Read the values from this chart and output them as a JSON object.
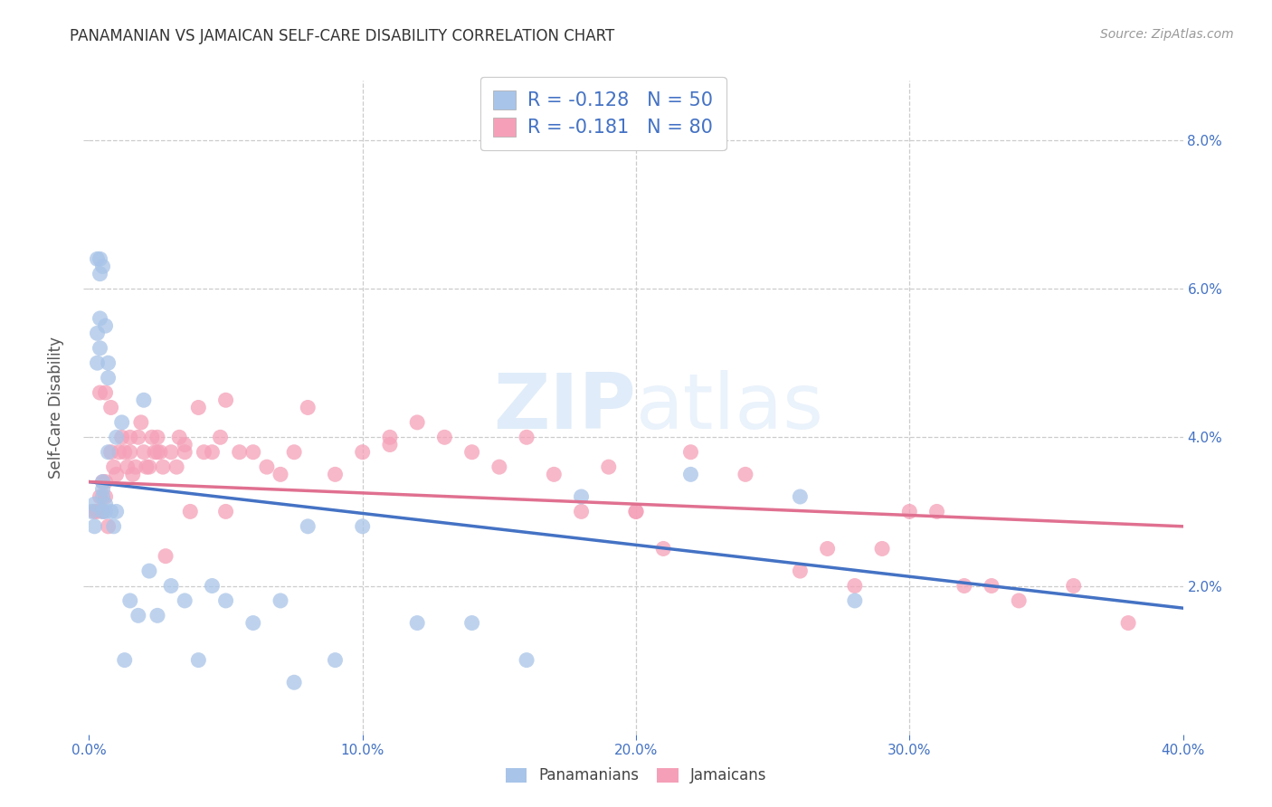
{
  "title": "PANAMANIAN VS JAMAICAN SELF-CARE DISABILITY CORRELATION CHART",
  "source": "Source: ZipAtlas.com",
  "ylabel": "Self-Care Disability",
  "xlim": [
    0.0,
    0.4
  ],
  "ylim": [
    0.0,
    0.088
  ],
  "xticks": [
    0.0,
    0.1,
    0.2,
    0.3,
    0.4
  ],
  "xtick_labels": [
    "0.0%",
    "10.0%",
    "20.0%",
    "30.0%",
    "40.0%"
  ],
  "yticks": [
    0.02,
    0.04,
    0.06,
    0.08
  ],
  "ytick_labels": [
    "2.0%",
    "4.0%",
    "6.0%",
    "8.0%"
  ],
  "panamanian_color": "#a8c4e8",
  "jamaican_color": "#f5a0b8",
  "panamanian_line_color": "#4472c4",
  "jamaican_line_color": "#e07090",
  "tick_color": "#4472c4",
  "legend_color": "#4472c4",
  "watermark_color": "#c8ddf5",
  "pan_line_x": [
    0.0,
    0.4
  ],
  "pan_line_y": [
    0.034,
    0.017
  ],
  "jam_line_x": [
    0.0,
    0.4
  ],
  "jam_line_y": [
    0.034,
    0.028
  ],
  "pan_x": [
    0.001,
    0.002,
    0.002,
    0.003,
    0.003,
    0.003,
    0.004,
    0.004,
    0.004,
    0.004,
    0.005,
    0.005,
    0.005,
    0.005,
    0.005,
    0.006,
    0.006,
    0.006,
    0.007,
    0.007,
    0.007,
    0.008,
    0.009,
    0.01,
    0.01,
    0.012,
    0.013,
    0.015,
    0.018,
    0.02,
    0.022,
    0.025,
    0.03,
    0.035,
    0.04,
    0.045,
    0.05,
    0.06,
    0.07,
    0.075,
    0.08,
    0.09,
    0.1,
    0.12,
    0.14,
    0.16,
    0.18,
    0.22,
    0.26,
    0.28
  ],
  "pan_y": [
    0.03,
    0.028,
    0.031,
    0.05,
    0.054,
    0.064,
    0.052,
    0.056,
    0.062,
    0.064,
    0.03,
    0.032,
    0.033,
    0.034,
    0.063,
    0.03,
    0.031,
    0.055,
    0.048,
    0.038,
    0.05,
    0.03,
    0.028,
    0.03,
    0.04,
    0.042,
    0.01,
    0.018,
    0.016,
    0.045,
    0.022,
    0.016,
    0.02,
    0.018,
    0.01,
    0.02,
    0.018,
    0.015,
    0.018,
    0.007,
    0.028,
    0.01,
    0.028,
    0.015,
    0.015,
    0.01,
    0.032,
    0.035,
    0.032,
    0.018
  ],
  "jam_x": [
    0.002,
    0.003,
    0.004,
    0.005,
    0.005,
    0.006,
    0.006,
    0.007,
    0.008,
    0.009,
    0.01,
    0.011,
    0.012,
    0.013,
    0.014,
    0.015,
    0.016,
    0.017,
    0.018,
    0.019,
    0.02,
    0.021,
    0.022,
    0.023,
    0.024,
    0.025,
    0.026,
    0.027,
    0.028,
    0.03,
    0.032,
    0.033,
    0.035,
    0.037,
    0.04,
    0.042,
    0.045,
    0.048,
    0.05,
    0.055,
    0.06,
    0.065,
    0.07,
    0.08,
    0.09,
    0.1,
    0.11,
    0.12,
    0.13,
    0.14,
    0.15,
    0.16,
    0.17,
    0.18,
    0.19,
    0.2,
    0.21,
    0.22,
    0.24,
    0.26,
    0.27,
    0.28,
    0.29,
    0.3,
    0.31,
    0.32,
    0.33,
    0.34,
    0.36,
    0.38,
    0.004,
    0.006,
    0.008,
    0.015,
    0.025,
    0.035,
    0.05,
    0.075,
    0.11,
    0.2
  ],
  "jam_y": [
    0.03,
    0.03,
    0.032,
    0.03,
    0.034,
    0.032,
    0.034,
    0.028,
    0.038,
    0.036,
    0.035,
    0.038,
    0.04,
    0.038,
    0.036,
    0.038,
    0.035,
    0.036,
    0.04,
    0.042,
    0.038,
    0.036,
    0.036,
    0.04,
    0.038,
    0.04,
    0.038,
    0.036,
    0.024,
    0.038,
    0.036,
    0.04,
    0.038,
    0.03,
    0.044,
    0.038,
    0.038,
    0.04,
    0.03,
    0.038,
    0.038,
    0.036,
    0.035,
    0.044,
    0.035,
    0.038,
    0.04,
    0.042,
    0.04,
    0.038,
    0.036,
    0.04,
    0.035,
    0.03,
    0.036,
    0.03,
    0.025,
    0.038,
    0.035,
    0.022,
    0.025,
    0.02,
    0.025,
    0.03,
    0.03,
    0.02,
    0.02,
    0.018,
    0.02,
    0.015,
    0.046,
    0.046,
    0.044,
    0.04,
    0.038,
    0.039,
    0.045,
    0.038,
    0.039,
    0.03
  ]
}
